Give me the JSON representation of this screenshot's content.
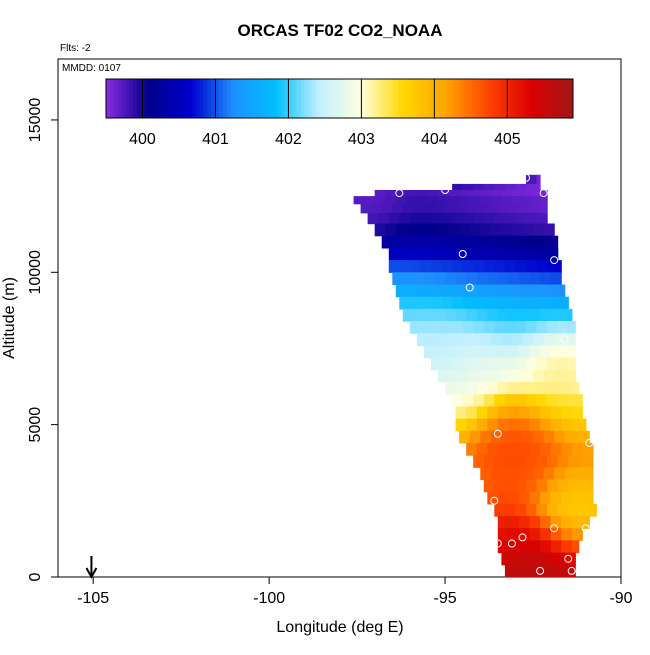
{
  "chart_data": {
    "type": "heatmap",
    "title": "ORCAS TF02 CO2_NOAA",
    "annotations": {
      "flights": "Flts: -2",
      "date": "MMDD: 0107"
    },
    "xlabel": "Longitude (deg E)",
    "ylabel": "Altitude (m)",
    "xlim": [
      -106,
      -90
    ],
    "ylim": [
      0,
      17000
    ],
    "xticks": [
      -105,
      -100,
      -95,
      -90
    ],
    "xtick_labels": [
      "-105",
      "-100",
      "-95",
      "-90"
    ],
    "yticks": [
      0,
      5000,
      10000,
      15000
    ],
    "ytick_labels": [
      "0",
      "5000",
      "10000",
      "15000"
    ],
    "colorbar": {
      "min": 399.5,
      "max": 405.9,
      "ticks": [
        400,
        401,
        402,
        403,
        404,
        405
      ],
      "tick_labels": [
        "400",
        "401",
        "402",
        "403",
        "404",
        "405"
      ],
      "colors": [
        "#8a2be2",
        "#00008b",
        "#0000cd",
        "#1e90ff",
        "#00bfff",
        "#bfefff",
        "#ffffe0",
        "#ffd700",
        "#ffa500",
        "#ff4500",
        "#dd0000",
        "#a01818"
      ]
    },
    "arrow_marker": {
      "x": -105.05,
      "label": ""
    },
    "field_rows": [
      {
        "alt": 13000,
        "lon_start": -92.7,
        "lon_end": -92.3,
        "value": 399.9
      },
      {
        "alt": 12800,
        "lon_start": -94.8,
        "lon_end": -92.3,
        "value": 399.9
      },
      {
        "alt": 12600,
        "lon_start": -97.0,
        "lon_end": -92.1,
        "value": 399.9
      },
      {
        "alt": 12400,
        "lon_start": -97.6,
        "lon_end": -92.1,
        "value": 400.0
      },
      {
        "alt": 12100,
        "lon_start": -97.4,
        "lon_end": -92.1,
        "value": 400.0
      },
      {
        "alt": 11800,
        "lon_start": -97.2,
        "lon_end": -92.1,
        "value": 400.1
      },
      {
        "alt": 11400,
        "lon_start": -97.0,
        "lon_end": -91.9,
        "value": 400.2
      },
      {
        "alt": 11000,
        "lon_start": -96.8,
        "lon_end": -91.8,
        "value": 400.4
      },
      {
        "alt": 10600,
        "lon_start": -96.6,
        "lon_end": -91.8,
        "value": 400.6
      },
      {
        "alt": 10200,
        "lon_start": -96.6,
        "lon_end": -91.7,
        "value": 401.0
      },
      {
        "alt": 9800,
        "lon_start": -96.5,
        "lon_end": -91.7,
        "value": 401.3
      },
      {
        "alt": 9400,
        "lon_start": -96.4,
        "lon_end": -91.6,
        "value": 401.6
      },
      {
        "alt": 9000,
        "lon_start": -96.3,
        "lon_end": -91.5,
        "value": 401.9
      },
      {
        "alt": 8600,
        "lon_start": -96.2,
        "lon_end": -91.4,
        "value": 402.1
      },
      {
        "alt": 8200,
        "lon_start": -96.0,
        "lon_end": -91.3,
        "value": 402.3
      },
      {
        "alt": 7800,
        "lon_start": -95.8,
        "lon_end": -91.3,
        "value": 402.5
      },
      {
        "alt": 7400,
        "lon_start": -95.6,
        "lon_end": -91.3,
        "value": 402.7
      },
      {
        "alt": 7000,
        "lon_start": -95.4,
        "lon_end": -91.3,
        "value": 402.9
      },
      {
        "alt": 6600,
        "lon_start": -95.2,
        "lon_end": -91.3,
        "value": 403.0
      },
      {
        "alt": 6200,
        "lon_start": -95.0,
        "lon_end": -91.2,
        "value": 403.2
      },
      {
        "alt": 5800,
        "lon_start": -94.8,
        "lon_end": -91.1,
        "value": 403.4
      },
      {
        "alt": 5400,
        "lon_start": -94.7,
        "lon_end": -91.1,
        "value": 403.6
      },
      {
        "alt": 5000,
        "lon_start": -94.7,
        "lon_end": -91.0,
        "value": 403.8
      },
      {
        "alt": 4600,
        "lon_start": -94.6,
        "lon_end": -90.9,
        "value": 404.0
      },
      {
        "alt": 4200,
        "lon_start": -94.4,
        "lon_end": -90.8,
        "value": 404.2
      },
      {
        "alt": 3800,
        "lon_start": -94.2,
        "lon_end": -90.8,
        "value": 404.3
      },
      {
        "alt": 3400,
        "lon_start": -94.0,
        "lon_end": -90.8,
        "value": 404.3
      },
      {
        "alt": 3000,
        "lon_start": -93.9,
        "lon_end": -90.8,
        "value": 404.3
      },
      {
        "alt": 2600,
        "lon_start": -93.8,
        "lon_end": -90.8,
        "value": 404.2
      },
      {
        "alt": 2200,
        "lon_start": -93.6,
        "lon_end": -90.7,
        "value": 404.1
      },
      {
        "alt": 1800,
        "lon_start": -93.5,
        "lon_end": -90.9,
        "value": 404.5
      },
      {
        "alt": 1400,
        "lon_start": -93.5,
        "lon_end": -91.1,
        "value": 404.8
      },
      {
        "alt": 1000,
        "lon_start": -93.5,
        "lon_end": -91.2,
        "value": 405.1
      },
      {
        "alt": 600,
        "lon_start": -93.4,
        "lon_end": -91.3,
        "value": 405.4
      },
      {
        "alt": 200,
        "lon_start": -93.3,
        "lon_end": -91.3,
        "value": 405.6
      }
    ],
    "field_blobs": [
      {
        "lon": -95.2,
        "alt": 7300,
        "value": 402.3
      },
      {
        "lon": -94.6,
        "alt": 6400,
        "value": 402.8
      },
      {
        "lon": -93.1,
        "alt": 4300,
        "value": 404.9
      },
      {
        "lon": -92.8,
        "alt": 3500,
        "value": 404.7
      },
      {
        "lon": -91.6,
        "alt": 6700,
        "value": 403.4
      },
      {
        "lon": -91.5,
        "alt": 2200,
        "value": 403.5
      },
      {
        "lon": -93.2,
        "alt": 1500,
        "value": 405.3
      },
      {
        "lon": -92.5,
        "alt": 600,
        "value": 405.7
      },
      {
        "lon": -97.4,
        "alt": 12400,
        "value": 399.6
      }
    ],
    "sample_points": [
      {
        "lon": -92.7,
        "alt": 13100
      },
      {
        "lon": -96.3,
        "alt": 12600
      },
      {
        "lon": -95.0,
        "alt": 12700
      },
      {
        "lon": -92.2,
        "alt": 12600
      },
      {
        "lon": -94.5,
        "alt": 10600
      },
      {
        "lon": -91.9,
        "alt": 10400
      },
      {
        "lon": -94.3,
        "alt": 9500
      },
      {
        "lon": -91.6,
        "alt": 7800
      },
      {
        "lon": -93.5,
        "alt": 4700
      },
      {
        "lon": -90.9,
        "alt": 4400
      },
      {
        "lon": -93.6,
        "alt": 2500
      },
      {
        "lon": -91.9,
        "alt": 1600
      },
      {
        "lon": -91.0,
        "alt": 1600
      },
      {
        "lon": -92.8,
        "alt": 1300
      },
      {
        "lon": -93.5,
        "alt": 1100
      },
      {
        "lon": -93.1,
        "alt": 1100
      },
      {
        "lon": -91.5,
        "alt": 600
      },
      {
        "lon": -93.5,
        "alt": 200
      },
      {
        "lon": -92.3,
        "alt": 200
      },
      {
        "lon": -91.4,
        "alt": 200
      }
    ]
  }
}
